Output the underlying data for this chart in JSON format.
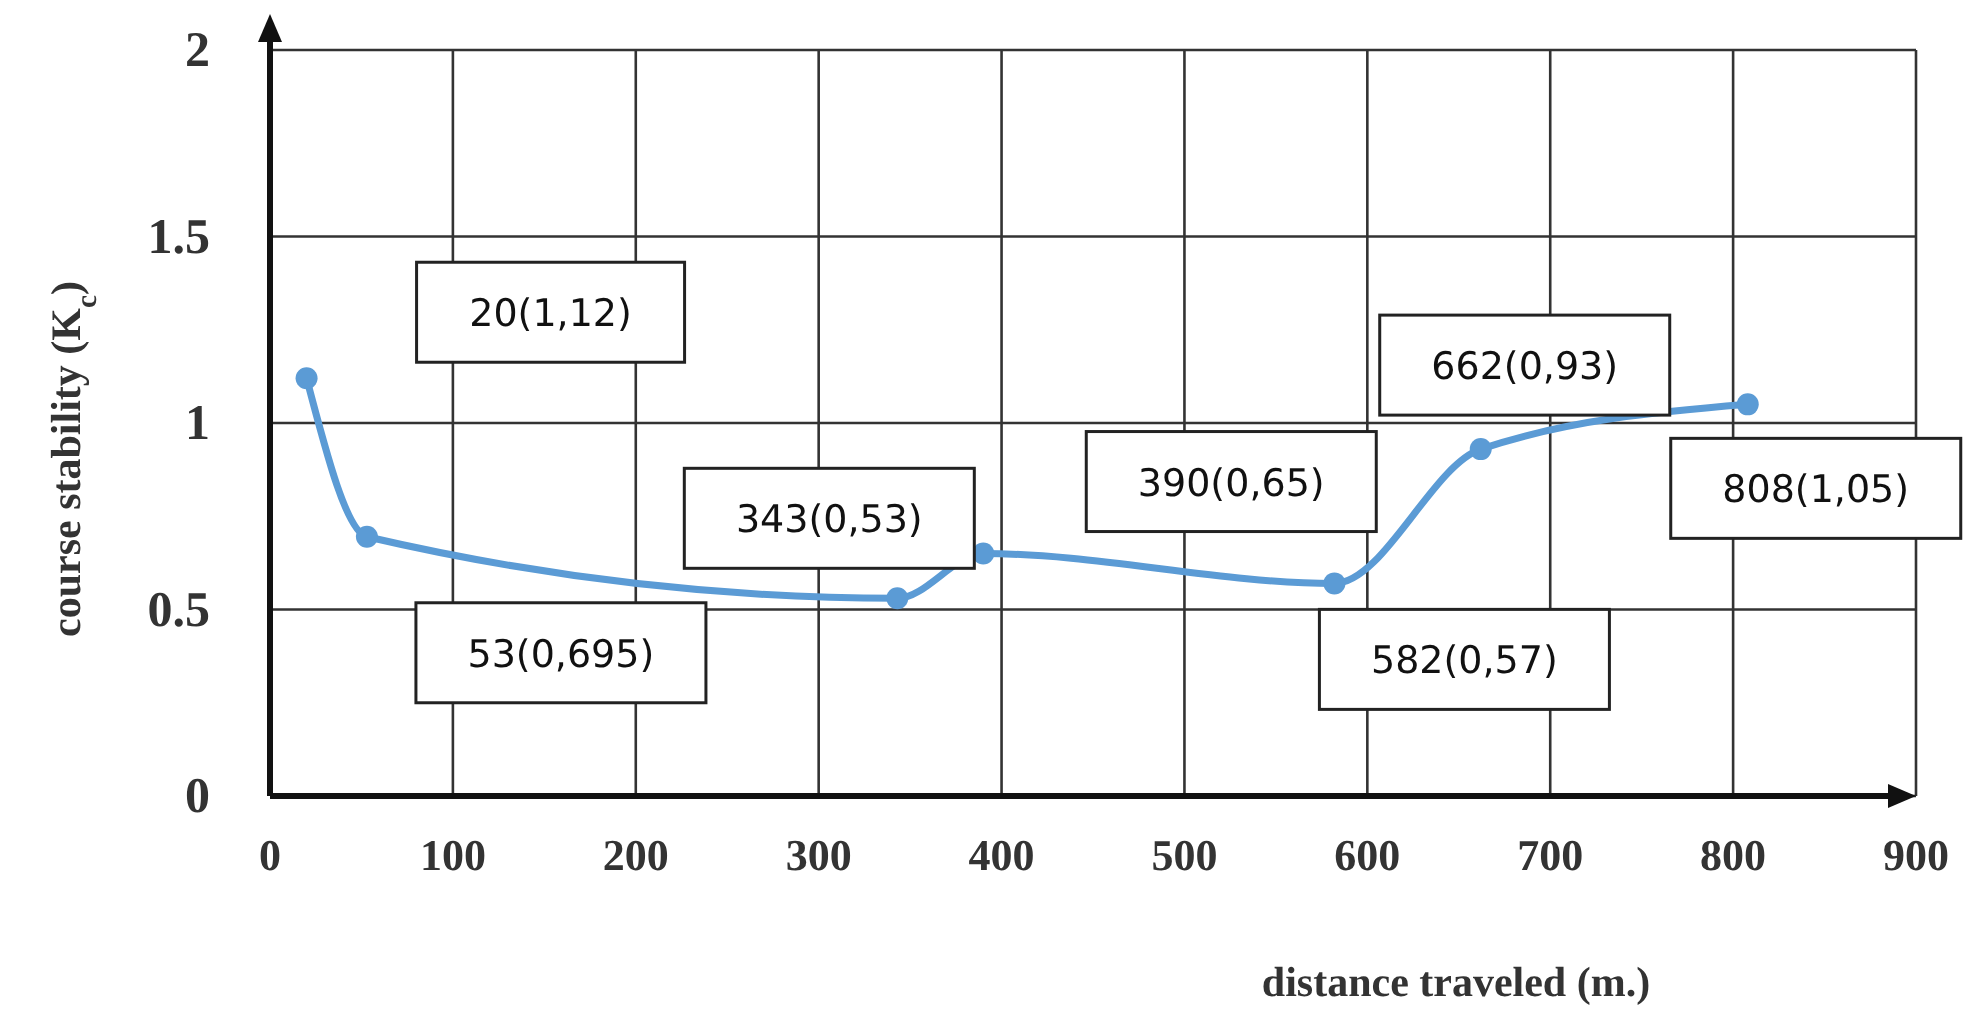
{
  "chart_data": {
    "type": "line",
    "xlabel": "distance traveled (m.)",
    "ylabel": "course stability (K$_{c}$)",
    "x": [
      20,
      53,
      343,
      390,
      582,
      662,
      808
    ],
    "series": [
      {
        "color": "#5b9bd5",
        "values": [
          1.12,
          0.695,
          0.53,
          0.65,
          0.57,
          0.93,
          1.05
        ]
      }
    ],
    "xlim": [
      0,
      900
    ],
    "xticks": [
      0,
      100,
      200,
      300,
      400,
      500,
      600,
      700,
      800,
      900
    ],
    "ylim": [
      0,
      2
    ],
    "yticks": [
      0,
      0.5,
      1,
      1.5,
      2
    ],
    "grid": true,
    "marker": "circle",
    "line_style": "solid",
    "annotations": [
      "20(1,12)",
      "53(0,695)",
      "343(0,53)",
      "390(0,65)",
      "582(0,57)",
      "662(0,93)",
      "808(1,05)"
    ]
  }
}
